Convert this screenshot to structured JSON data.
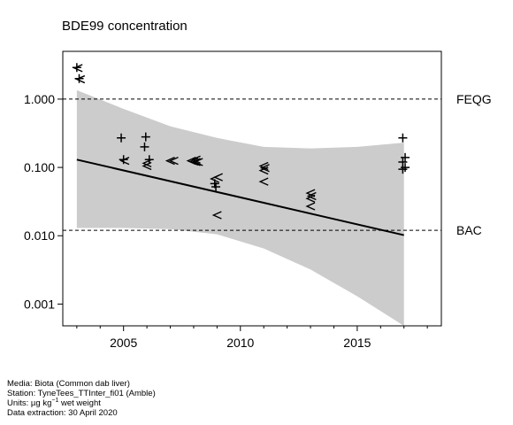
{
  "chart_data": {
    "type": "scatter",
    "title": "BDE99 concentration",
    "xlabel": "",
    "ylabel": "",
    "y_scale": "log",
    "xlim": [
      2002.4,
      2018.6
    ],
    "ylim": [
      0.00048,
      5.0
    ],
    "x_ticks": [
      2005,
      2010,
      2015
    ],
    "x_tick_labels": [
      "2005",
      "2010",
      "2015"
    ],
    "y_ticks": [
      0.001,
      0.01,
      0.1,
      1.0
    ],
    "y_tick_labels": [
      "0.001",
      "0.010",
      "0.100",
      "1.000"
    ],
    "grid": false,
    "reference_lines": [
      {
        "name": "FEQG",
        "value": 1.0
      },
      {
        "name": "BAC",
        "value": 0.012
      }
    ],
    "trend": {
      "x": [
        2003,
        2017
      ],
      "y": [
        0.13,
        0.0102
      ],
      "band_x": [
        2003,
        2005,
        2007,
        2009,
        2011,
        2013,
        2015,
        2017
      ],
      "band_upper": [
        1.35,
        0.72,
        0.4,
        0.27,
        0.2,
        0.19,
        0.2,
        0.23
      ],
      "band_lower": [
        0.013,
        0.013,
        0.0125,
        0.0105,
        0.0065,
        0.0032,
        0.0013,
        0.00048
      ]
    },
    "points": [
      {
        "x": 2003.0,
        "y": 2.9,
        "marker": "+"
      },
      {
        "x": 2003.05,
        "y": 2.85,
        "marker": "<"
      },
      {
        "x": 2003.1,
        "y": 2.0,
        "marker": "+"
      },
      {
        "x": 2003.15,
        "y": 1.95,
        "marker": "<"
      },
      {
        "x": 2004.9,
        "y": 0.27,
        "marker": "+"
      },
      {
        "x": 2005.0,
        "y": 0.13,
        "marker": "+"
      },
      {
        "x": 2005.05,
        "y": 0.125,
        "marker": "<"
      },
      {
        "x": 2005.95,
        "y": 0.28,
        "marker": "+"
      },
      {
        "x": 2005.9,
        "y": 0.2,
        "marker": "+"
      },
      {
        "x": 2006.1,
        "y": 0.13,
        "marker": "+"
      },
      {
        "x": 2006.0,
        "y": 0.115,
        "marker": "<"
      },
      {
        "x": 2006.0,
        "y": 0.105,
        "marker": "<"
      },
      {
        "x": 2007.0,
        "y": 0.125,
        "marker": "<"
      },
      {
        "x": 2007.15,
        "y": 0.125,
        "marker": "<"
      },
      {
        "x": 2007.9,
        "y": 0.125,
        "marker": "<"
      },
      {
        "x": 2008.0,
        "y": 0.122,
        "marker": "<"
      },
      {
        "x": 2008.1,
        "y": 0.12,
        "marker": "<"
      },
      {
        "x": 2008.2,
        "y": 0.12,
        "marker": "<"
      },
      {
        "x": 2008.1,
        "y": 0.13,
        "marker": "<"
      },
      {
        "x": 2008.9,
        "y": 0.068,
        "marker": "<"
      },
      {
        "x": 2009.05,
        "y": 0.072,
        "marker": "<"
      },
      {
        "x": 2008.9,
        "y": 0.058,
        "marker": "+"
      },
      {
        "x": 2008.95,
        "y": 0.052,
        "marker": "+"
      },
      {
        "x": 2009.0,
        "y": 0.02,
        "marker": "<"
      },
      {
        "x": 2011.0,
        "y": 0.105,
        "marker": "<"
      },
      {
        "x": 2011.05,
        "y": 0.098,
        "marker": "<"
      },
      {
        "x": 2011.0,
        "y": 0.09,
        "marker": "<"
      },
      {
        "x": 2011.0,
        "y": 0.062,
        "marker": "<"
      },
      {
        "x": 2013.0,
        "y": 0.042,
        "marker": "<"
      },
      {
        "x": 2013.05,
        "y": 0.038,
        "marker": "<"
      },
      {
        "x": 2013.0,
        "y": 0.035,
        "marker": "<"
      },
      {
        "x": 2013.0,
        "y": 0.027,
        "marker": "<"
      },
      {
        "x": 2016.95,
        "y": 0.27,
        "marker": "+"
      },
      {
        "x": 2017.05,
        "y": 0.14,
        "marker": "+"
      },
      {
        "x": 2016.95,
        "y": 0.12,
        "marker": "+"
      },
      {
        "x": 2017.05,
        "y": 0.1,
        "marker": "+"
      },
      {
        "x": 2016.95,
        "y": 0.094,
        "marker": "+"
      }
    ]
  },
  "footer": {
    "media": "Media: Biota (Common dab liver)",
    "station": "Station: TyneTees_TTInter_fi01 (Amble)",
    "units_prefix": "Units:  µg kg",
    "units_sup": "−1",
    "units_suffix": " wet weight",
    "extraction": "Data extraction: 30 April 2020"
  }
}
